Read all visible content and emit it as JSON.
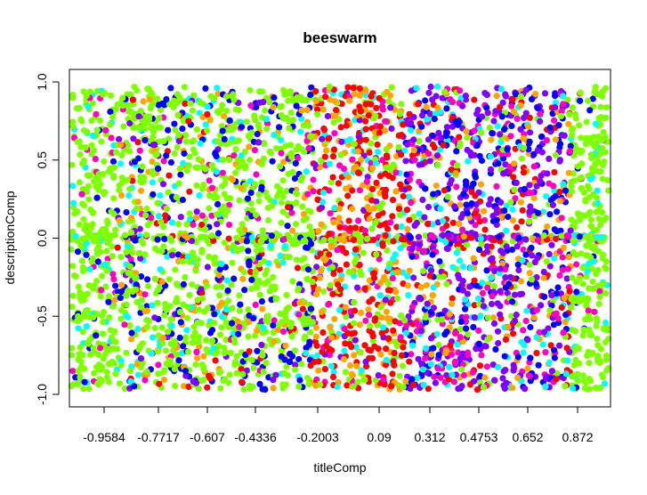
{
  "chart_data": {
    "type": "scatter",
    "title": "beeswarm",
    "xlabel": "titleComp",
    "ylabel": "descriptionComp",
    "x_tick_labels": [
      "-0.9584",
      "-0.7717",
      "-0.607",
      "-0.4336",
      "-0.2003",
      "0.09",
      "0.312",
      "0.4753",
      "0.652",
      "0.872"
    ],
    "y_ticks": [
      -1.0,
      -0.5,
      0.0,
      0.5,
      1.0
    ],
    "y_tick_labels": [
      "-1.0",
      "-0.5",
      "0.0",
      "0.5",
      "1.0"
    ],
    "ylim": [
      -1.08,
      1.08
    ],
    "grid": false,
    "legend": "none",
    "colors": {
      "green": "#80ff00",
      "cyan": "#00ffff",
      "blue": "#0000ff",
      "purple": "#8000ff",
      "magenta": "#ff00bf",
      "red": "#ff0000",
      "orange": "#ffa500"
    },
    "color_distribution_by_x_group": [
      {
        "x_group": "-0.9584",
        "dominant": [
          "green",
          "blue",
          "magenta"
        ]
      },
      {
        "x_group": "-0.7717",
        "dominant": [
          "green",
          "blue",
          "red"
        ]
      },
      {
        "x_group": "-0.607",
        "dominant": [
          "green",
          "blue",
          "purple"
        ]
      },
      {
        "x_group": "-0.4336",
        "dominant": [
          "green",
          "blue",
          "cyan",
          "orange"
        ]
      },
      {
        "x_group": "-0.2003",
        "dominant": [
          "green",
          "orange",
          "cyan"
        ]
      },
      {
        "x_group": "0.09",
        "dominant": [
          "red",
          "orange",
          "green"
        ]
      },
      {
        "x_group": "0.312",
        "dominant": [
          "purple",
          "magenta",
          "red",
          "blue"
        ]
      },
      {
        "x_group": "0.4753",
        "dominant": [
          "purple",
          "blue",
          "magenta",
          "cyan"
        ]
      },
      {
        "x_group": "0.652",
        "dominant": [
          "purple",
          "blue",
          "red",
          "green"
        ]
      },
      {
        "x_group": "0.872",
        "dominant": [
          "green",
          "cyan",
          "magenta"
        ]
      }
    ]
  }
}
